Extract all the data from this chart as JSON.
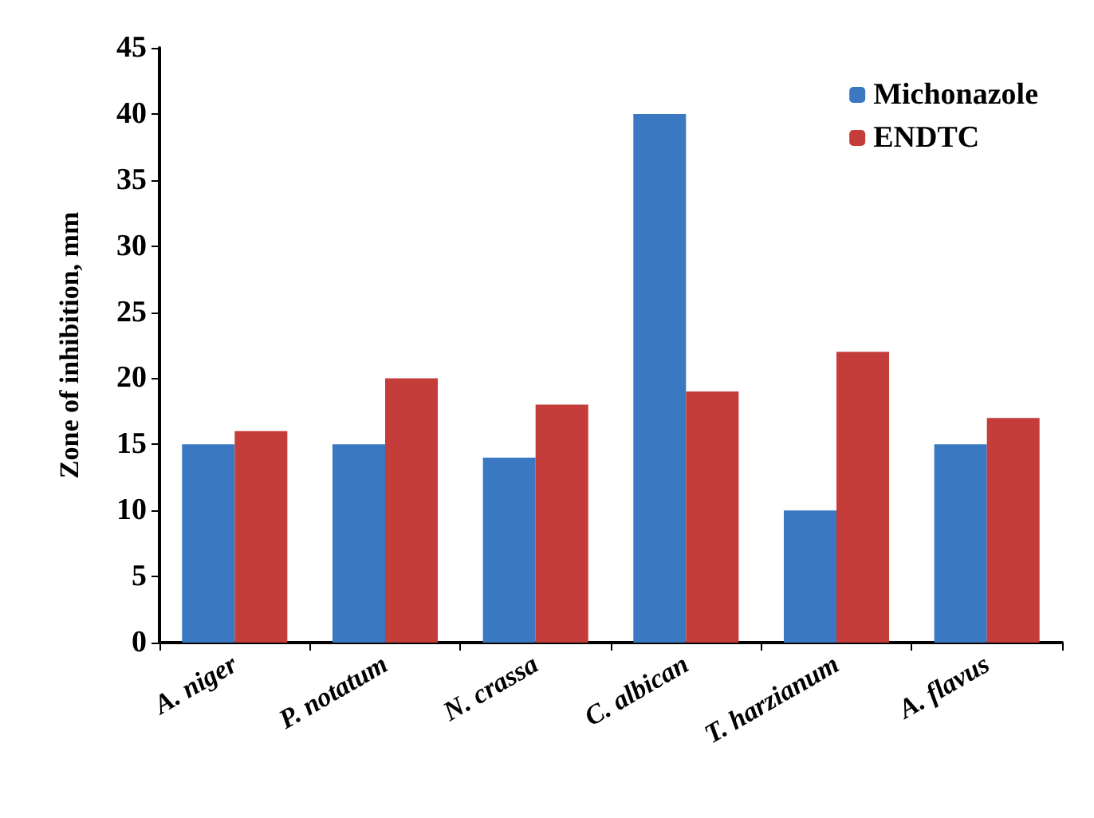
{
  "chart_data": {
    "type": "bar",
    "ylabel": "Zone of inhibition, mm",
    "categories": [
      "A. niger",
      "P. notatum",
      "N. crassa",
      "C. albican",
      "T. harzianum",
      "A. flavus"
    ],
    "series": [
      {
        "name": "Michonazole",
        "color": "#3a78c2",
        "values": [
          15,
          15,
          14,
          40,
          10,
          15
        ]
      },
      {
        "name": "ENDTC",
        "color": "#c43d3a",
        "values": [
          16,
          20,
          18,
          19,
          22,
          17
        ]
      }
    ],
    "ylim": [
      0,
      45
    ],
    "yticks": [
      0,
      5,
      10,
      15,
      20,
      25,
      30,
      35,
      40,
      45
    ],
    "grid": false,
    "legend": "top right"
  }
}
